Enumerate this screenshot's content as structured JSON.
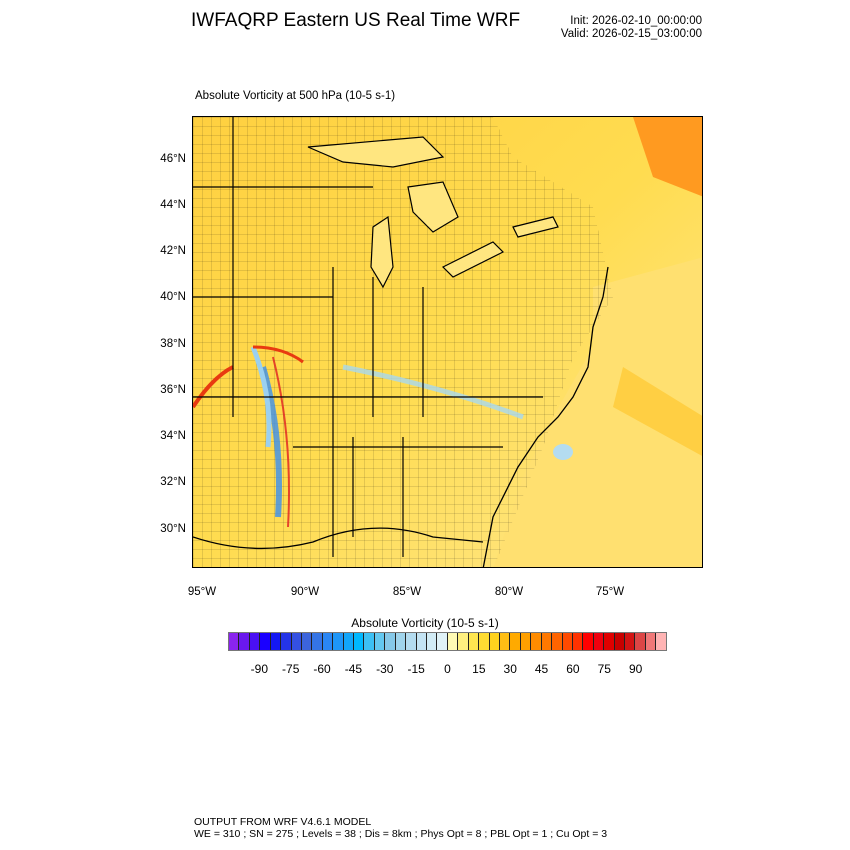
{
  "header": {
    "title": "IWFAQRP Eastern US Real Time WRF",
    "init": "Init: 2026-02-10_00:00:00",
    "valid": "Valid: 2026-02-15_03:00:00"
  },
  "plot": {
    "subtitle": "Absolute Vorticity at 500 hPa   (10-5 s-1)",
    "lat_labels": [
      "46°N",
      "44°N",
      "42°N",
      "40°N",
      "38°N",
      "36°N",
      "34°N",
      "32°N",
      "30°N"
    ],
    "lon_labels": [
      "95°W",
      "90°W",
      "85°W",
      "80°W",
      "75°W"
    ]
  },
  "colorbar": {
    "title": "Absolute Vorticity  (10-5 s-1)",
    "labels": [
      "-90",
      "-75",
      "-60",
      "-45",
      "-30",
      "-15",
      "0",
      "15",
      "30",
      "45",
      "60",
      "75",
      "90"
    ],
    "colors": [
      "#8a24ee",
      "#6a18ee",
      "#4a10f4",
      "#1a00ff",
      "#1418f4",
      "#2434e8",
      "#3450e2",
      "#3c64dc",
      "#3474e6",
      "#2a86f4",
      "#1e96f8",
      "#12a6fa",
      "#00b8ff",
      "#3cc0f4",
      "#64c8f0",
      "#86c8e8",
      "#a0d4ec",
      "#b4dcf0",
      "#c4e4f4",
      "#d2ecf6",
      "#e0f2f8",
      "#fffab4",
      "#fff080",
      "#ffe650",
      "#ffdc32",
      "#ffd21e",
      "#ffbe14",
      "#ffaa00",
      "#ffa000",
      "#ff8c00",
      "#ff7800",
      "#ff6400",
      "#ff4a00",
      "#ff3200",
      "#ff0000",
      "#f0000e",
      "#e00000",
      "#c80000",
      "#d21414",
      "#dc4646",
      "#f07878",
      "#ffb4b4"
    ]
  },
  "footer": {
    "line1": "OUTPUT FROM WRF V4.6.1 MODEL",
    "line2": "WE = 310 ; SN = 275 ; Levels = 38 ; Dis = 8km ; Phys Opt = 8 ; PBL Opt = 1 ; Cu Opt = 3"
  }
}
